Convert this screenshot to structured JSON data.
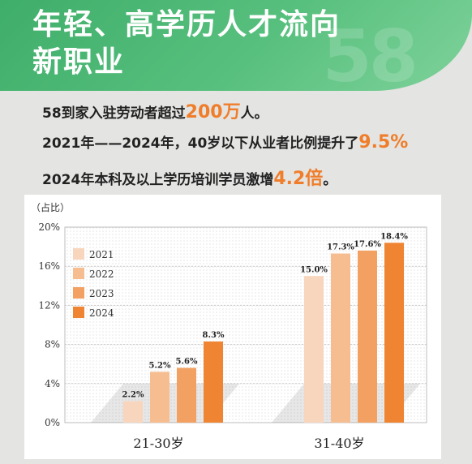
{
  "header": {
    "title_line1": "年轻、高学历人才流向",
    "title_line2": "新职业",
    "watermark": "58"
  },
  "facts": [
    {
      "pre": "58到家入驻劳动者超过",
      "hl": "200万",
      "post": "人。"
    },
    {
      "pre": "2021年——2024年，40岁以下从业者比例提升了",
      "hl": "9.5%",
      "post": ""
    },
    {
      "pre": "2024年本科及以上学历培训学员激增",
      "hl": "4.2倍",
      "post": "。"
    }
  ],
  "colors": {
    "header_green": "#4cb874",
    "highlight_orange": "#ef7d2a",
    "series": [
      "#f8d6bd",
      "#f6bd91",
      "#f3a163",
      "#ef8432"
    ]
  },
  "chart_data": {
    "type": "bar",
    "ylabel": "（占比）",
    "ylim": [
      0,
      20
    ],
    "yticks": [
      "0%",
      "4%",
      "8%",
      "12%",
      "16%",
      "20%"
    ],
    "categories": [
      "21-30岁",
      "31-40岁"
    ],
    "series": [
      {
        "name": "2021",
        "values": [
          2.2,
          15.0
        ],
        "labels": [
          "2.2%",
          "15.0%"
        ]
      },
      {
        "name": "2022",
        "values": [
          5.2,
          17.3
        ],
        "labels": [
          "5.2%",
          "17.3%"
        ]
      },
      {
        "name": "2023",
        "values": [
          5.6,
          17.6
        ],
        "labels": [
          "5.6%",
          "17.6%"
        ]
      },
      {
        "name": "2024",
        "values": [
          8.3,
          18.4
        ],
        "labels": [
          "8.3%",
          "18.4%"
        ]
      }
    ],
    "grid": true,
    "legend": "top-left"
  }
}
